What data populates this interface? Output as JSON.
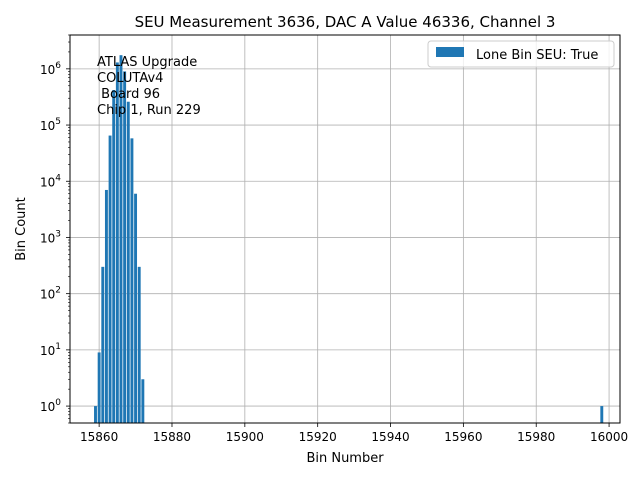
{
  "chart_data": {
    "type": "bar",
    "title": "SEU Measurement 3636, DAC A Value 46336, Channel 3",
    "xlabel": "Bin Number",
    "ylabel": "Bin Count",
    "yscale": "log",
    "xlim": [
      15852,
      16003
    ],
    "ylim": [
      0.5,
      4000000
    ],
    "x_ticks": [
      15860,
      15880,
      15900,
      15920,
      15940,
      15960,
      15980,
      16000
    ],
    "x_tick_labels": [
      "15860",
      "15880",
      "15900",
      "15920",
      "15940",
      "15960",
      "15980",
      "16000"
    ],
    "y_ticks": [
      1,
      10,
      100,
      1000,
      10000,
      100000,
      1000000
    ],
    "y_tick_labels": [
      "10^0",
      "10^1",
      "10^2",
      "10^3",
      "10^4",
      "10^5",
      "10^6"
    ],
    "grid": true,
    "legend_position": "top-right",
    "bar_color": "#1f77b4",
    "series": [
      {
        "name": "Lone Bin SEU: True",
        "x": [
          15859,
          15860,
          15861,
          15862,
          15863,
          15864,
          15865,
          15866,
          15867,
          15868,
          15869,
          15870,
          15871,
          15872,
          15998
        ],
        "values": [
          1,
          9,
          300,
          7000,
          65000,
          420000,
          1300000,
          1750000,
          900000,
          260000,
          58000,
          6000,
          300,
          3,
          1
        ]
      }
    ],
    "annotation_lines": [
      "ATLAS Upgrade",
      "COLUTAv4",
      " Board 96",
      "Chip 1, Run 229"
    ]
  }
}
